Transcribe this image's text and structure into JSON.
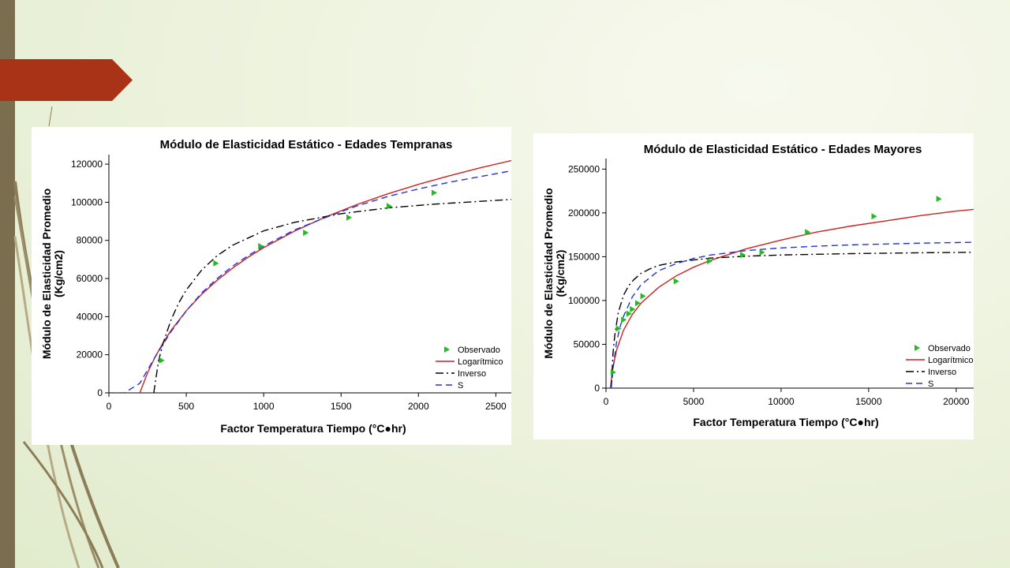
{
  "slide": {
    "colors": {
      "left_bar": "#7a6e4f",
      "banner": "#a93317",
      "background": "#eef3df"
    },
    "icons": [
      "arrow-banner",
      "decorative-curves"
    ]
  },
  "legend_items": [
    "Observado",
    "Logarítmico",
    "Inverso",
    "S"
  ],
  "chart_data": [
    {
      "type": "line",
      "title": "Módulo de Elasticidad Estático - Edades Tempranas",
      "xlabel": "Factor Temperatura Tiempo (°C●hr)",
      "ylabel": "Módulo de Elasticidad Promedio",
      "ylabel2": "(Kg/cm2)",
      "xlim": [
        0,
        2600
      ],
      "ylim": [
        0,
        125000
      ],
      "xticks": [
        0,
        500,
        1000,
        1500,
        2000,
        2500
      ],
      "yticks": [
        0,
        20000,
        40000,
        60000,
        80000,
        100000,
        120000
      ],
      "legend_position": "bottom-right",
      "colors": {
        "observed": "#22bb22",
        "log": "#cc2222",
        "inverse": "#000000",
        "s": "#2233dd"
      },
      "series": [
        {
          "name": "Observado",
          "kind": "scatter",
          "x": [
            340,
            690,
            980,
            1270,
            1550,
            1810,
            2100
          ],
          "y": [
            17000,
            68000,
            77000,
            84000,
            92000,
            98000,
            105000
          ]
        },
        {
          "name": "Logarítmico",
          "kind": "line",
          "x": [
            200,
            250,
            300,
            350,
            400,
            500,
            600,
            700,
            800,
            900,
            1000,
            1200,
            1400,
            1600,
            1800,
            2000,
            2200,
            2400,
            2600
          ],
          "y": [
            0,
            10500,
            19100,
            26300,
            32600,
            43100,
            51800,
            59100,
            65500,
            71200,
            76200,
            84900,
            92300,
            98700,
            104400,
            109400,
            113900,
            118100,
            121900
          ]
        },
        {
          "name": "Inverso",
          "kind": "line",
          "x": [
            290,
            320,
            350,
            400,
            450,
            500,
            600,
            700,
            800,
            1000,
            1200,
            1500,
            1800,
            2100,
            2400,
            2600
          ],
          "y": [
            0,
            16500,
            26000,
            38000,
            47000,
            54000,
            64500,
            72000,
            77500,
            85000,
            89500,
            94000,
            97000,
            99000,
            100500,
            101500
          ]
        },
        {
          "name": "S",
          "kind": "line",
          "x": [
            0,
            100,
            200,
            300,
            400,
            500,
            600,
            700,
            800,
            900,
            1000,
            1200,
            1400,
            1600,
            1800,
            2000,
            2200,
            2400,
            2600
          ],
          "y": [
            0,
            0,
            5000,
            19000,
            32000,
            43000,
            52500,
            60000,
            66500,
            72000,
            77000,
            85500,
            92000,
            98000,
            103000,
            107000,
            110500,
            113500,
            116500
          ]
        }
      ]
    },
    {
      "type": "line",
      "title": "Módulo de Elasticidad Estático - Edades Mayores",
      "xlabel": "Factor Temperatura Tiempo (°C●hr)",
      "ylabel": "Módulo de Elasticidad Promedio",
      "ylabel2": "(Kg/cm2)",
      "xlim": [
        0,
        21000
      ],
      "ylim": [
        0,
        262000
      ],
      "xticks": [
        0,
        5000,
        10000,
        15000,
        20000
      ],
      "yticks": [
        0,
        50000,
        100000,
        150000,
        200000,
        250000
      ],
      "legend_position": "bottom-right",
      "colors": {
        "observed": "#22bb22",
        "log": "#cc2222",
        "inverse": "#000000",
        "s": "#2233dd"
      },
      "series": [
        {
          "name": "Observado",
          "kind": "scatter",
          "x": [
            400,
            700,
            1000,
            1300,
            1500,
            1800,
            2100,
            4000,
            5900,
            7800,
            8900,
            11500,
            15300,
            19000
          ],
          "y": [
            18000,
            68000,
            78000,
            85000,
            90000,
            97000,
            105000,
            122000,
            145000,
            152000,
            155000,
            178000,
            196000,
            216000
          ]
        },
        {
          "name": "Logarítmico",
          "kind": "line",
          "x": [
            250,
            400,
            600,
            1000,
            1500,
            2000,
            3000,
            4000,
            5000,
            6000,
            8000,
            10000,
            12000,
            14000,
            16000,
            18000,
            20000,
            21000
          ],
          "y": [
            0,
            24000,
            43000,
            66000,
            84000,
            97000,
            115000,
            128000,
            138000,
            146000,
            159000,
            169000,
            178000,
            185000,
            191000,
            197000,
            202000,
            204000
          ]
        },
        {
          "name": "Inverso",
          "kind": "line",
          "x": [
            300,
            400,
            500,
            700,
            1000,
            1300,
            1600,
            2000,
            2500,
            3000,
            4000,
            6000,
            8000,
            10000,
            14000,
            18000,
            21000
          ],
          "y": [
            0,
            40000,
            60000,
            86000,
            106000,
            117000,
            124000,
            131000,
            136000,
            140000,
            144000,
            148500,
            150500,
            152000,
            153500,
            154500,
            155000
          ]
        },
        {
          "name": "S",
          "kind": "line",
          "x": [
            300,
            400,
            600,
            800,
            1000,
            1500,
            2000,
            3000,
            4000,
            5000,
            6000,
            8000,
            10000,
            12000,
            14000,
            16000,
            18000,
            21000
          ],
          "y": [
            0,
            22000,
            52000,
            70000,
            82000,
            104000,
            118000,
            134000,
            142000,
            148000,
            152000,
            157000,
            160000,
            162000,
            163500,
            164500,
            165500,
            166500
          ]
        }
      ]
    }
  ]
}
